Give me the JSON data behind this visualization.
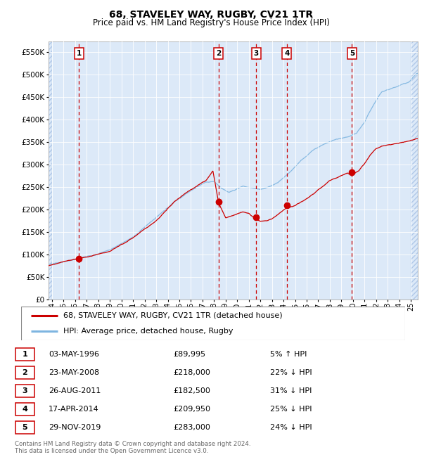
{
  "title": "68, STAVELEY WAY, RUGBY, CV21 1TR",
  "subtitle": "Price paid vs. HM Land Registry's House Price Index (HPI)",
  "legend_line1": "68, STAVELEY WAY, RUGBY, CV21 1TR (detached house)",
  "legend_line2": "HPI: Average price, detached house, Rugby",
  "footer1": "Contains HM Land Registry data © Crown copyright and database right 2024.",
  "footer2": "This data is licensed under the Open Government Licence v3.0.",
  "ylim": [
    0,
    575000
  ],
  "yticks": [
    0,
    50000,
    100000,
    150000,
    200000,
    250000,
    300000,
    350000,
    400000,
    450000,
    500000,
    550000
  ],
  "ytick_labels": [
    "£0",
    "£50K",
    "£100K",
    "£150K",
    "£200K",
    "£250K",
    "£300K",
    "£350K",
    "£400K",
    "£450K",
    "£500K",
    "£550K"
  ],
  "xlim_start": 1993.7,
  "xlim_end": 2025.6,
  "xticks": [
    1994,
    1995,
    1996,
    1997,
    1998,
    1999,
    2000,
    2001,
    2002,
    2003,
    2004,
    2005,
    2006,
    2007,
    2008,
    2009,
    2010,
    2011,
    2012,
    2013,
    2014,
    2015,
    2016,
    2017,
    2018,
    2019,
    2020,
    2021,
    2022,
    2023,
    2024,
    2025
  ],
  "background_color": "#dce9f8",
  "hpi_color": "#7eb5e0",
  "price_color": "#cc0000",
  "transactions": [
    {
      "num": 1,
      "date_str": "03-MAY-1996",
      "year": 1996.34,
      "price": 89995
    },
    {
      "num": 2,
      "date_str": "23-MAY-2008",
      "year": 2008.39,
      "price": 218000
    },
    {
      "num": 3,
      "date_str": "26-AUG-2011",
      "year": 2011.65,
      "price": 182500
    },
    {
      "num": 4,
      "date_str": "17-APR-2014",
      "year": 2014.29,
      "price": 209950
    },
    {
      "num": 5,
      "date_str": "29-NOV-2019",
      "year": 2019.91,
      "price": 283000
    }
  ],
  "table_rows": [
    {
      "num": 1,
      "date": "03-MAY-1996",
      "price": "£89,995",
      "rel": "5% ↑ HPI"
    },
    {
      "num": 2,
      "date": "23-MAY-2008",
      "price": "£218,000",
      "rel": "22% ↓ HPI"
    },
    {
      "num": 3,
      "date": "26-AUG-2011",
      "price": "£182,500",
      "rel": "31% ↓ HPI"
    },
    {
      "num": 4,
      "date": "17-APR-2014",
      "price": "£209,950",
      "rel": "25% ↓ HPI"
    },
    {
      "num": 5,
      "date": "29-NOV-2019",
      "price": "£283,000",
      "rel": "24% ↓ HPI"
    }
  ]
}
